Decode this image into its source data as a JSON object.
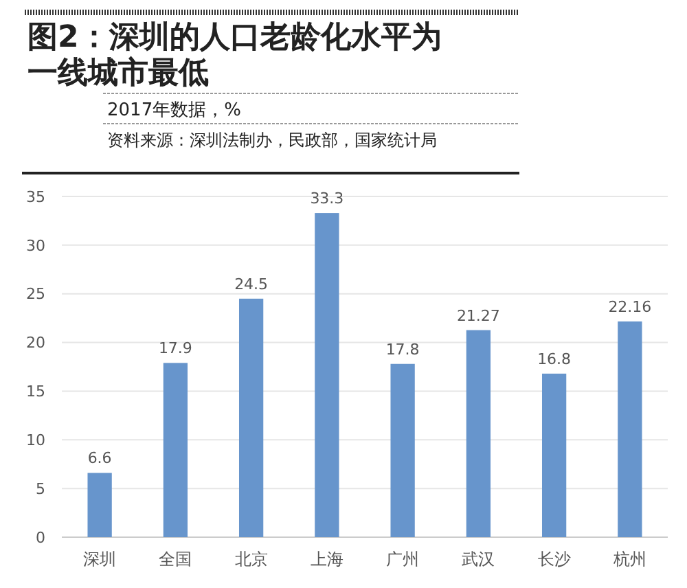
{
  "chart_data": {
    "type": "bar",
    "title": "图2：深圳的人口老龄化水平为一线城市最低",
    "subtitle": "2017年数据，%",
    "annotations": [
      "资料来源：深圳法制办，民政部，国家统计局"
    ],
    "categories": [
      "深圳",
      "全国",
      "北京",
      "上海",
      "广州",
      "武汉",
      "长沙",
      "杭州"
    ],
    "values": [
      6.6,
      17.9,
      24.5,
      33.3,
      17.8,
      21.27,
      16.8,
      22.16
    ],
    "color": "#6795cc",
    "ylim": [
      0,
      35
    ],
    "yticks": [
      0,
      5,
      10,
      15,
      20,
      25,
      30,
      35
    ],
    "grid": "y",
    "data_labels": true
  }
}
